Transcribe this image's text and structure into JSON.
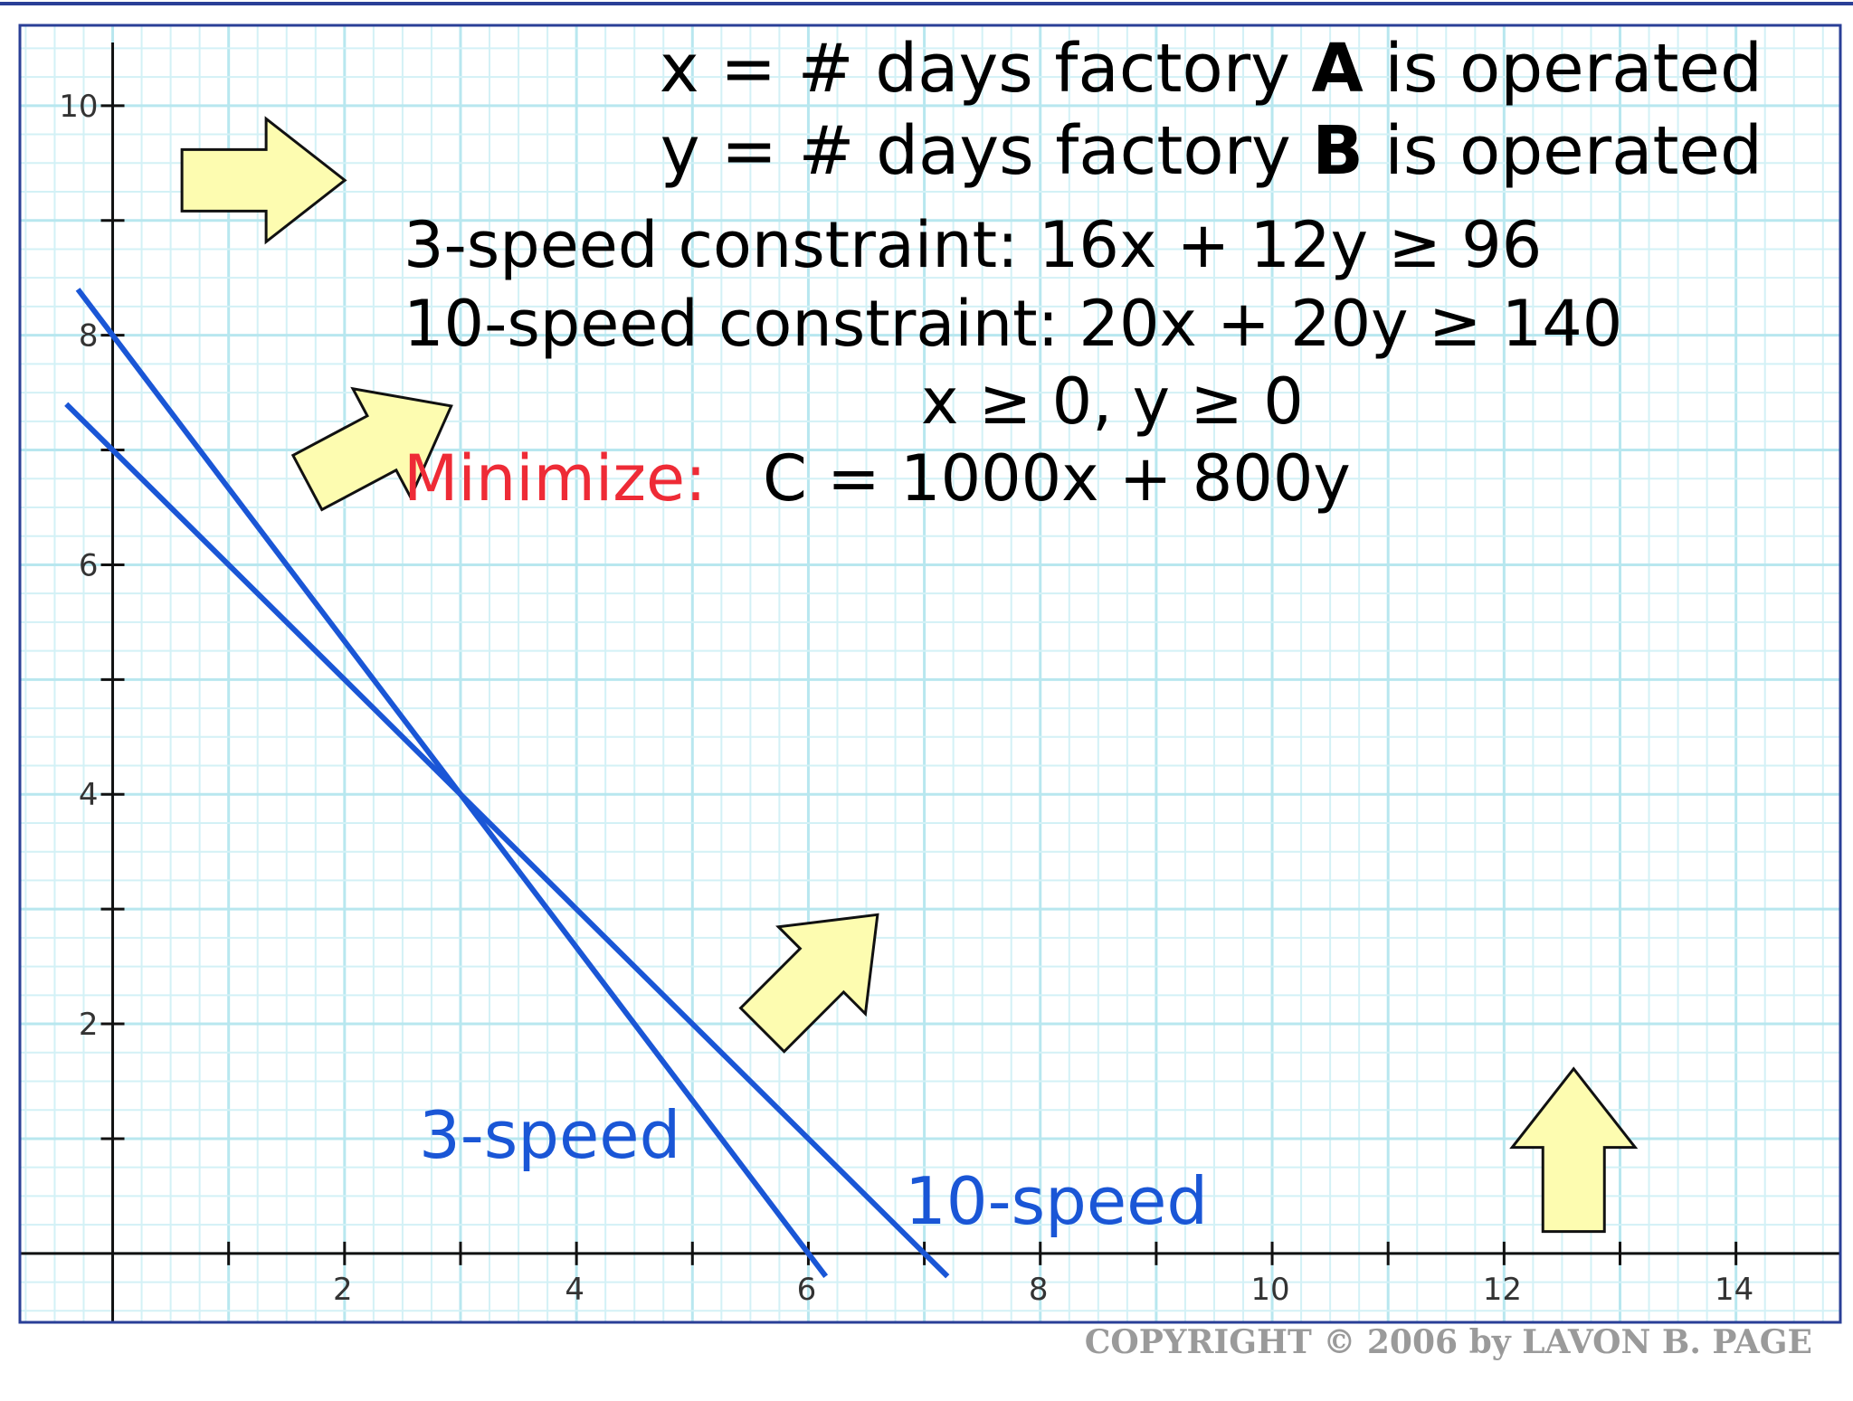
{
  "chart_data": {
    "type": "line",
    "xlim": [
      -0.8,
      14.9
    ],
    "ylim": [
      -0.6,
      10.7
    ],
    "grid": true,
    "x_ticks": [
      {
        "v": 1,
        "label": ""
      },
      {
        "v": 2,
        "label": "2"
      },
      {
        "v": 3,
        "label": ""
      },
      {
        "v": 4,
        "label": "4"
      },
      {
        "v": 5,
        "label": ""
      },
      {
        "v": 6,
        "label": "6"
      },
      {
        "v": 7,
        "label": ""
      },
      {
        "v": 8,
        "label": "8"
      },
      {
        "v": 9,
        "label": ""
      },
      {
        "v": 10,
        "label": "10"
      },
      {
        "v": 11,
        "label": ""
      },
      {
        "v": 12,
        "label": "12"
      },
      {
        "v": 13,
        "label": ""
      },
      {
        "v": 14,
        "label": "14"
      }
    ],
    "y_ticks": [
      {
        "v": 1,
        "label": ""
      },
      {
        "v": 2,
        "label": "2"
      },
      {
        "v": 3,
        "label": ""
      },
      {
        "v": 4,
        "label": "4"
      },
      {
        "v": 5,
        "label": ""
      },
      {
        "v": 6,
        "label": "6"
      },
      {
        "v": 7,
        "label": ""
      },
      {
        "v": 8,
        "label": "8"
      },
      {
        "v": 9,
        "label": ""
      },
      {
        "v": 10,
        "label": "10"
      }
    ],
    "series": [
      {
        "name": "3-speed",
        "color": "#1a56d6",
        "points": [
          [
            -0.3,
            8.4
          ],
          [
            6.15,
            -0.2
          ]
        ]
      },
      {
        "name": "10-speed",
        "color": "#1a56d6",
        "points": [
          [
            -0.4,
            7.4
          ],
          [
            7.2,
            -0.2
          ]
        ]
      }
    ],
    "arrows": [
      {
        "x": 1.3,
        "y": 9.35,
        "angle": 0
      },
      {
        "x": 2.3,
        "y": 7.05,
        "angle": -28
      },
      {
        "x": 6.1,
        "y": 2.45,
        "angle": -45
      },
      {
        "x": 12.6,
        "y": 0.9,
        "angle": -90
      }
    ]
  },
  "annotations": {
    "line1_pre": "x = # days factory ",
    "line1_bold": "A",
    "line1_post": " is operated",
    "line2_pre": "y = # days factory ",
    "line2_bold": "B",
    "line2_post": " is operated",
    "constraint_3speed": "3-speed constraint: 16x + 12y ≥ 96",
    "constraint_10speed": "10-speed constraint: 20x + 20y ≥ 140",
    "nonneg": "x ≥ 0, y ≥ 0",
    "minimize_label": "Minimize:",
    "objective": "C = 1000x + 800y",
    "label_3speed": "3-speed",
    "label_10speed": "10-speed"
  },
  "copyright": "COPYRIGHT © 2006 by LAVON B. PAGE",
  "colors": {
    "grid_minor": "#d3f1f6",
    "grid_major": "#b8e7ef",
    "line_blue": "#1a56d6",
    "arrow_fill": "#fdfcb0",
    "minimize_red": "#ee2b36",
    "frame_navy": "#2a3f97",
    "copyright_gray": "#9a9a9a"
  }
}
